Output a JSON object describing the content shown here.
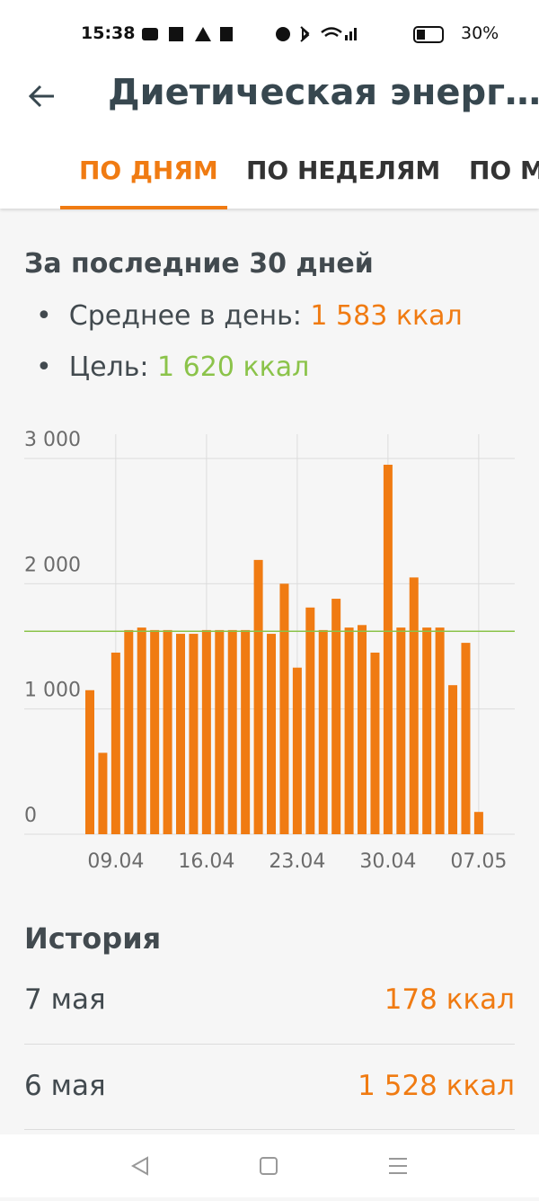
{
  "status_bar": {
    "time": "15:38",
    "battery": "30%"
  },
  "app_bar": {
    "title": "Диетическая энерг…"
  },
  "tabs": [
    "ПО ДНЯМ",
    "ПО НЕДЕЛЯМ",
    "ПО М"
  ],
  "summary": {
    "heading": "За последние 30 дней",
    "average": {
      "label": "Среднее в день:",
      "value": "1 583 ккал"
    },
    "goal": {
      "label": "Цель:",
      "value": 1620,
      "value_label": "1 620 ккал"
    }
  },
  "chart_data": {
    "type": "bar",
    "categories": [
      null,
      null,
      "09.04",
      null,
      null,
      null,
      null,
      null,
      null,
      "16.04",
      null,
      null,
      null,
      null,
      null,
      null,
      "23.04",
      null,
      null,
      null,
      null,
      null,
      null,
      "30.04",
      null,
      null,
      null,
      null,
      null,
      null,
      "07.05"
    ],
    "values": [
      1150,
      650,
      1450,
      1630,
      1650,
      1630,
      1630,
      1600,
      1600,
      1630,
      1630,
      1630,
      1630,
      2190,
      1600,
      2000,
      1330,
      1810,
      1630,
      1880,
      1650,
      1670,
      1450,
      2950,
      1650,
      2050,
      1650,
      1650,
      1190,
      1528,
      178
    ],
    "color": "#f07b12",
    "goal_color": "#8bc34a",
    "ylim": [
      0,
      3000
    ],
    "yticks": [
      0,
      {
        "value": 1000,
        "label": "1 000"
      },
      {
        "value": 2000,
        "label": "2 000"
      },
      {
        "value": 3000,
        "label": "3 000"
      }
    ],
    "grid": true
  },
  "history": {
    "heading": "История",
    "rows": [
      {
        "date": "7 мая",
        "value": "178 ккал"
      },
      {
        "date": "6 мая",
        "value": "1 528 ккал"
      }
    ]
  }
}
